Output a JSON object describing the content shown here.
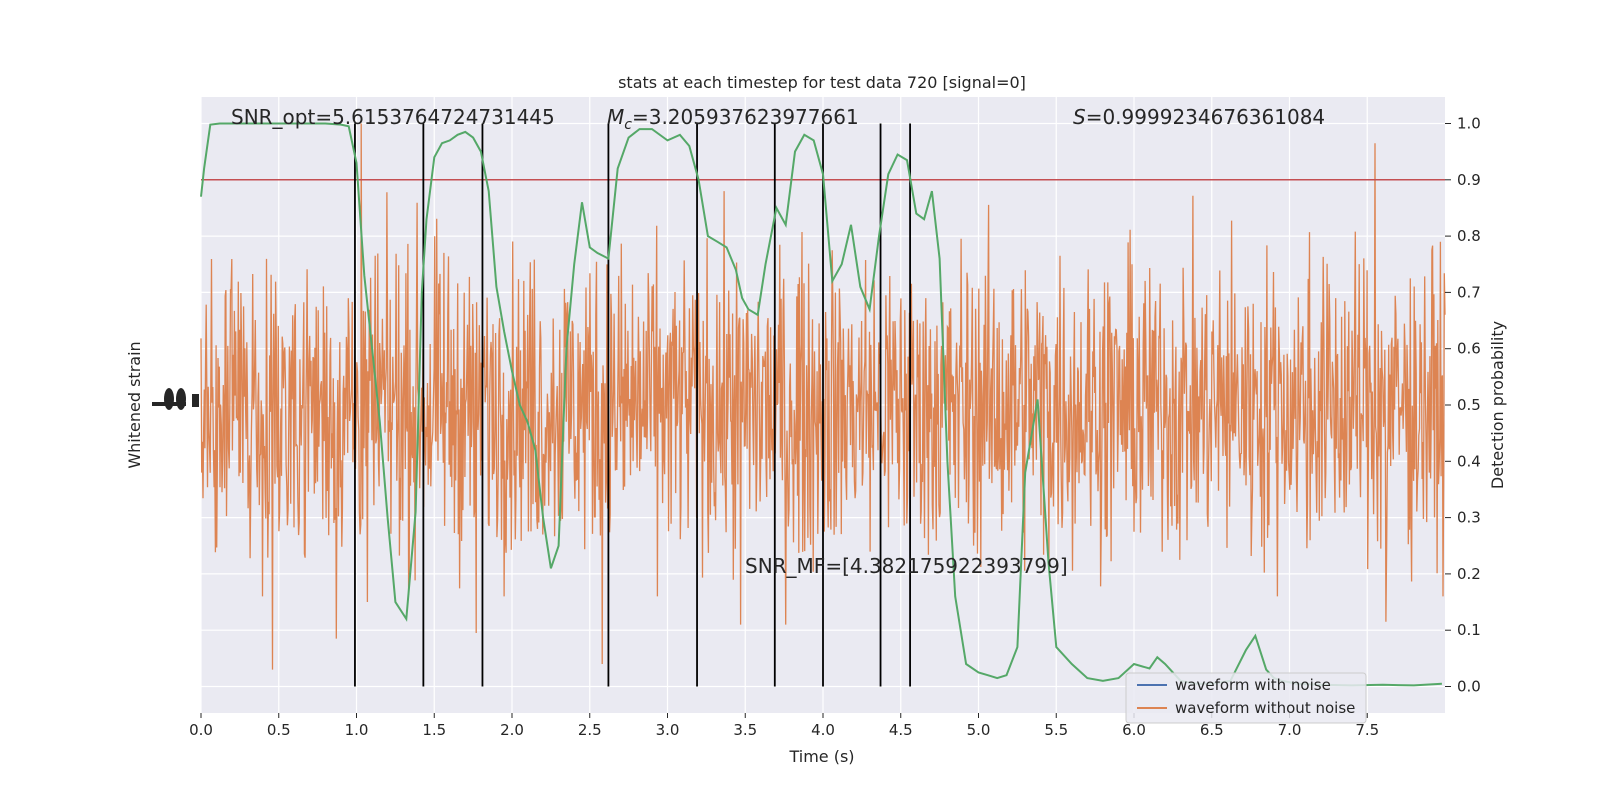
{
  "chart_data": {
    "type": "line",
    "title": "stats at each timestep for test data 720 [signal=0]",
    "xlabel": "Time (s)",
    "ylabel_left": "Whitened strain",
    "ylabel_right": "Detection probability",
    "xlim": [
      0.0,
      8.0
    ],
    "ylim_right": [
      -0.05,
      1.05
    ],
    "grid": true,
    "legend_location": "lower right",
    "x_ticks": [
      "0.0",
      "0.5",
      "1.0",
      "1.5",
      "2.0",
      "2.5",
      "3.0",
      "3.5",
      "4.0",
      "4.5",
      "5.0",
      "5.5",
      "6.0",
      "6.5",
      "7.0",
      "7.5"
    ],
    "y_ticks_right": [
      "0.0",
      "0.1",
      "0.2",
      "0.3",
      "0.4",
      "0.5",
      "0.6",
      "0.7",
      "0.8",
      "0.9",
      "1.0"
    ],
    "annotations": {
      "snr_opt": "SNR_opt=5.6153764724731445",
      "mc_symbol": "M",
      "mc_subscript": "c",
      "mc_value": "=3.205937623977661",
      "s_symbol": "S",
      "s_value": "=0.9999234676361084",
      "snr_mf": "SNR_MF=[4.382175922393799]"
    },
    "threshold": 0.9,
    "vertical_lines": [
      0.99,
      1.43,
      1.81,
      2.62,
      3.19,
      3.69,
      4.0,
      4.37,
      4.56
    ],
    "series": [
      {
        "name": "waveform with noise",
        "color": "#4c72b0",
        "axis": "left",
        "values": []
      },
      {
        "name": "waveform without noise",
        "color": "#dd8452",
        "axis": "left",
        "note_render": "dense noise trace",
        "spikes": [
          {
            "x": 0.46,
            "y": 0.03
          },
          {
            "x": 0.87,
            "y": 0.085
          },
          {
            "x": 1.03,
            "y": 1.0
          },
          {
            "x": 1.07,
            "y": 0.15
          },
          {
            "x": 1.77,
            "y": 0.095
          },
          {
            "x": 2.58,
            "y": 0.04
          },
          {
            "x": 3.47,
            "y": 0.11
          },
          {
            "x": 3.76,
            "y": 0.11
          },
          {
            "x": 7.55,
            "y": 0.965
          },
          {
            "x": 7.62,
            "y": 0.115
          }
        ]
      },
      {
        "name": "detection probability",
        "color": "#55a868",
        "axis": "right",
        "x": [
          0.0,
          0.02,
          0.06,
          0.12,
          0.2,
          0.3,
          0.4,
          0.5,
          0.6,
          0.7,
          0.8,
          0.9,
          0.95,
          1.0,
          1.05,
          1.1,
          1.15,
          1.2,
          1.25,
          1.32,
          1.38,
          1.42,
          1.45,
          1.5,
          1.55,
          1.6,
          1.65,
          1.7,
          1.75,
          1.8,
          1.85,
          1.9,
          1.95,
          2.0,
          2.05,
          2.1,
          2.15,
          2.2,
          2.25,
          2.3,
          2.35,
          2.4,
          2.45,
          2.5,
          2.55,
          2.62,
          2.68,
          2.75,
          2.82,
          2.9,
          3.0,
          3.08,
          3.14,
          3.2,
          3.26,
          3.32,
          3.38,
          3.44,
          3.48,
          3.52,
          3.58,
          3.63,
          3.7,
          3.76,
          3.82,
          3.88,
          3.94,
          4.0,
          4.06,
          4.12,
          4.18,
          4.24,
          4.3,
          4.36,
          4.42,
          4.48,
          4.54,
          4.6,
          4.65,
          4.7,
          4.75,
          4.8,
          4.85,
          4.92,
          5.0,
          5.06,
          5.12,
          5.18,
          5.25,
          5.3,
          5.38,
          5.45,
          5.5,
          5.6,
          5.7,
          5.8,
          5.9,
          6.0,
          6.1,
          6.15,
          6.2,
          6.3,
          6.4,
          6.5,
          6.62,
          6.72,
          6.78,
          6.85,
          6.9,
          6.95,
          7.05,
          7.2,
          7.4,
          7.6,
          7.8,
          7.98
        ],
        "values": [
          0.87,
          0.92,
          0.998,
          1.0,
          1.0,
          1.0,
          1.0,
          1.0,
          1.0,
          1.0,
          1.0,
          0.998,
          0.995,
          0.93,
          0.73,
          0.6,
          0.47,
          0.3,
          0.15,
          0.12,
          0.31,
          0.7,
          0.83,
          0.94,
          0.965,
          0.97,
          0.98,
          0.985,
          0.975,
          0.95,
          0.88,
          0.71,
          0.63,
          0.56,
          0.5,
          0.47,
          0.42,
          0.3,
          0.21,
          0.25,
          0.6,
          0.75,
          0.86,
          0.78,
          0.77,
          0.76,
          0.92,
          0.975,
          0.99,
          0.99,
          0.97,
          0.98,
          0.96,
          0.9,
          0.8,
          0.79,
          0.78,
          0.74,
          0.69,
          0.67,
          0.66,
          0.75,
          0.85,
          0.82,
          0.95,
          0.98,
          0.97,
          0.91,
          0.72,
          0.75,
          0.82,
          0.71,
          0.67,
          0.8,
          0.91,
          0.945,
          0.935,
          0.84,
          0.83,
          0.88,
          0.76,
          0.4,
          0.16,
          0.04,
          0.025,
          0.02,
          0.015,
          0.02,
          0.07,
          0.38,
          0.51,
          0.22,
          0.07,
          0.04,
          0.015,
          0.01,
          0.015,
          0.04,
          0.032,
          0.052,
          0.04,
          0.01,
          0.005,
          0.005,
          0.01,
          0.065,
          0.09,
          0.03,
          0.015,
          0.01,
          0.005,
          0.003,
          0.002,
          0.003,
          0.002,
          0.005
        ]
      }
    ],
    "threshold_color": "#c44e52",
    "vline_color": "#000000",
    "background_color": "#eaeaf2"
  }
}
